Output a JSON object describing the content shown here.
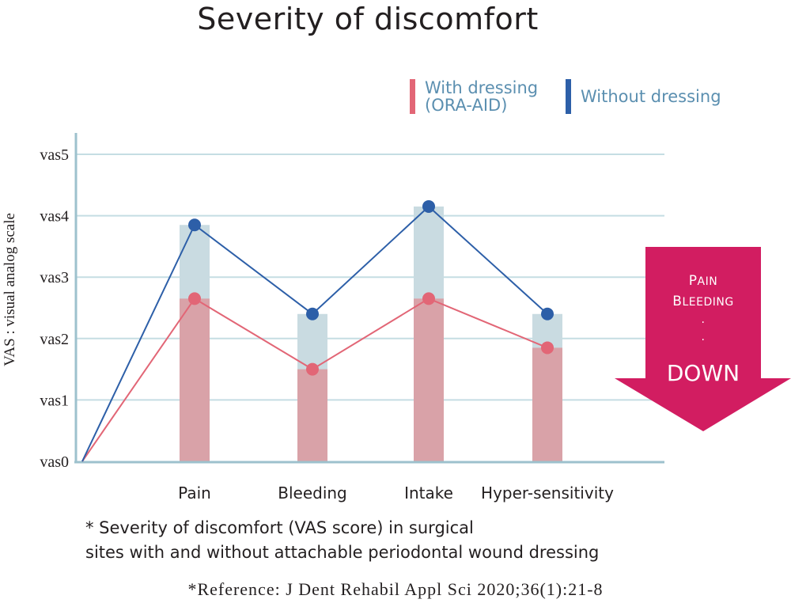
{
  "title": "Severity of discomfort",
  "legend": {
    "with": {
      "label": "With dressing\n(ORA-AID)",
      "color": "#e26676"
    },
    "without": {
      "label": "Without dressing",
      "color": "#2d5fa8"
    }
  },
  "arrow": {
    "line1": "Pain",
    "line2": "Bleeding",
    "dot1": ".",
    "dot2": ".",
    "big": "DOWN",
    "color": "#d21d61"
  },
  "note": "* Severity of discomfort (VAS score) in surgical\nsites with and without attachable periodontal wound dressing",
  "reference": "*Reference: J Dent Rehabil Appl Sci 2020;36(1):21-8",
  "chart_data": {
    "type": "bar",
    "ylabel": "VAS : visual analog scale",
    "yticks": [
      "vas0",
      "vas1",
      "vas2",
      "vas3",
      "vas4",
      "vas5"
    ],
    "ylim": [
      0,
      5
    ],
    "grid": true,
    "legend_position": "top-right",
    "categories": [
      "Pain",
      "Bleeding",
      "Intake",
      "Hyper-sensitivity"
    ],
    "series": [
      {
        "name": "With dressing (ORA-AID)",
        "color": "#e26676",
        "bar_color": "#d9a2a8",
        "values": [
          2.65,
          1.5,
          2.65,
          1.85
        ]
      },
      {
        "name": "Without dressing",
        "color": "#2d5fa8",
        "bar_color": "#c9dbe1",
        "values": [
          3.85,
          2.4,
          4.15,
          2.4
        ]
      }
    ],
    "line_origin": 0
  }
}
